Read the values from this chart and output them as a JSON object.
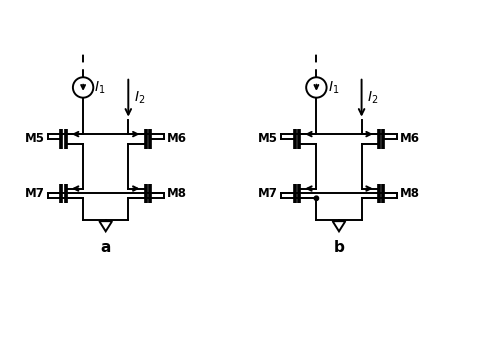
{
  "bg": "#ffffff",
  "lc": "black",
  "lw": 1.4,
  "label_a": "a",
  "label_b": "b",
  "circuits": [
    {
      "ox": 0.3,
      "variant": "a"
    },
    {
      "ox": 5.1,
      "variant": "b"
    }
  ]
}
